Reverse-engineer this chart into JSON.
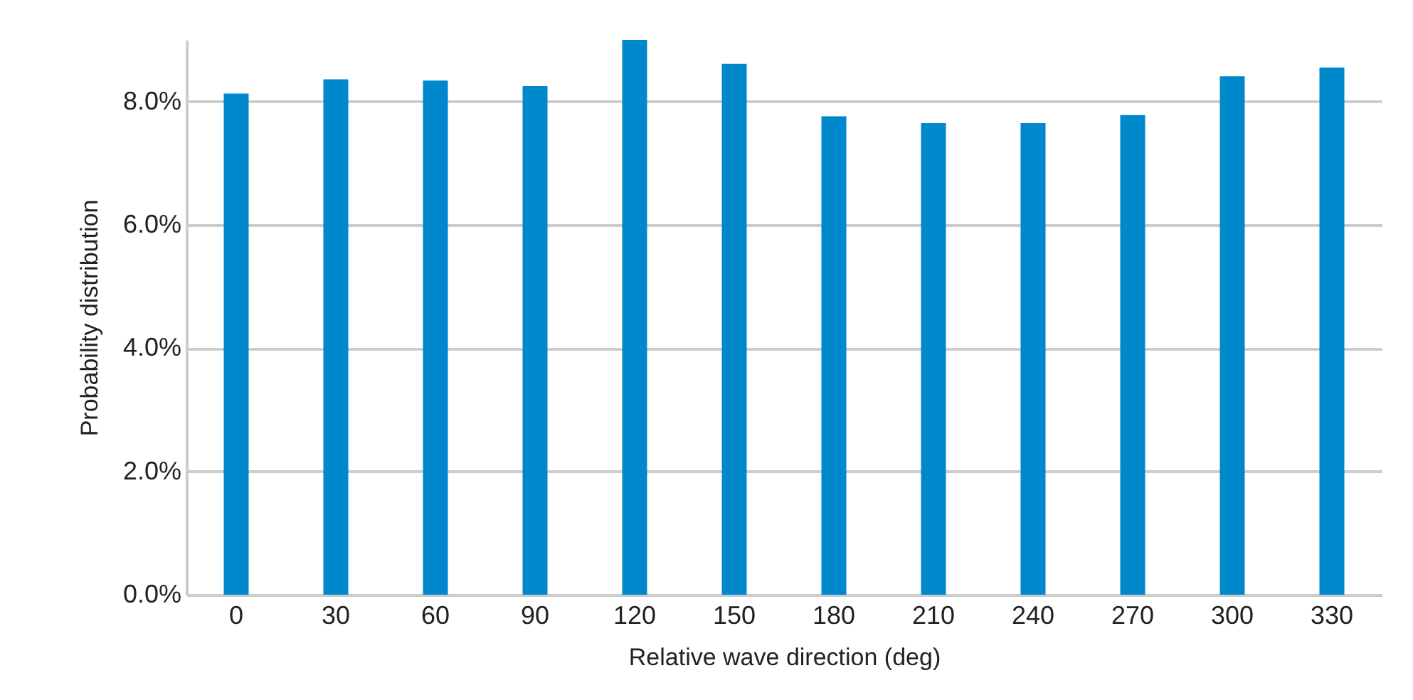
{
  "chart_data": {
    "type": "bar",
    "xlabel": "Relative wave direction (deg)",
    "ylabel": "Probability distribution",
    "categories": [
      "0",
      "30",
      "60",
      "90",
      "120",
      "150",
      "180",
      "210",
      "240",
      "270",
      "300",
      "330"
    ],
    "values": [
      8.13,
      8.36,
      8.34,
      8.25,
      9.0,
      8.61,
      7.76,
      7.65,
      7.65,
      7.78,
      8.41,
      8.55
    ],
    "color": "#0088cc",
    "ylim": [
      0,
      9
    ],
    "yticks": [
      {
        "value": 0,
        "label": "0.0%"
      },
      {
        "value": 2,
        "label": "2.0%"
      },
      {
        "value": 4,
        "label": "4.0%"
      },
      {
        "value": 6,
        "label": "6.0%"
      },
      {
        "value": 8,
        "label": "8.0%"
      }
    ],
    "grid": "y"
  }
}
